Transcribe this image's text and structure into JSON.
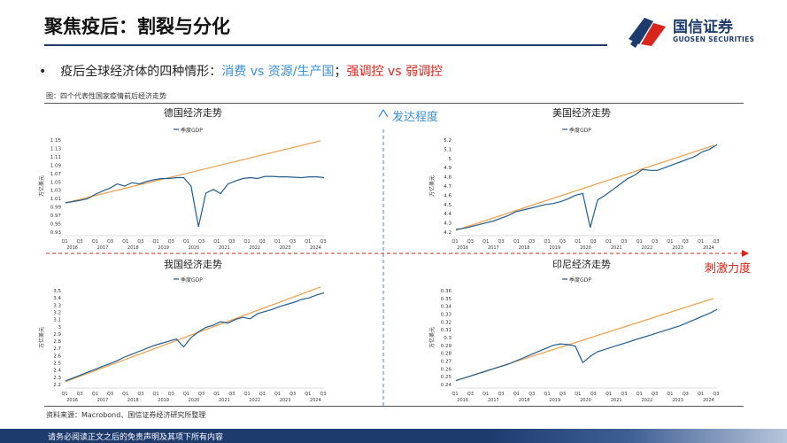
{
  "header": {
    "title": "聚焦疫后：割裂与分化",
    "logo_cn": "国信证券",
    "logo_en": "GUOSEN SECURITIES"
  },
  "bullet": {
    "marker": "•",
    "lead": "疫后全球经济体的四种情形：",
    "blue_part": "消费 vs 资源/生产国",
    "sep": "；",
    "red_part": "强调控 vs 弱调控"
  },
  "figure_caption": "图：四个代表性国家疫情前后经济走势",
  "axes_labels": {
    "vertical": "发达程度",
    "horizontal": "刺激力度"
  },
  "source_note": "资料来源：Macrobond、国信证券经济研究所整理",
  "footer": "请务必阅读正文之后的免责声明及其项下所有内容",
  "colors": {
    "gdp_line": "#1f5c8f",
    "trend_line": "#ee9b44",
    "divider": "#3a8fd6",
    "arrow_red": "#d9261c"
  },
  "chart_data": [
    {
      "id": "germany",
      "type": "line",
      "title": "德国经济走势",
      "legend": "季度GDP",
      "ylabel": "万亿美元",
      "ylim": [
        0.93,
        1.15
      ],
      "yticks": [
        "0.93",
        "0.95",
        "0.97",
        "0.99",
        "1.01",
        "1.03",
        "1.05",
        "1.07",
        "1.09",
        "1.11",
        "1.13",
        "1.15"
      ],
      "xticks": [
        "Q1",
        "Q3",
        "Q1",
        "Q3",
        "Q1",
        "Q3",
        "Q1",
        "Q3",
        "Q1",
        "Q3",
        "Q1",
        "Q3",
        "Q1",
        "Q3",
        "Q1",
        "Q3",
        "Q1",
        "Q3"
      ],
      "years": [
        "2016",
        "2017",
        "2018",
        "2019",
        "2020",
        "2021",
        "2022",
        "2023",
        "2024"
      ],
      "series": [
        {
          "values": [
            1.0,
            1.003,
            1.006,
            1.01,
            1.02,
            1.028,
            1.035,
            1.045,
            1.04,
            1.048,
            1.045,
            1.051,
            1.055,
            1.058,
            1.058,
            1.06,
            1.06,
            1.04,
            0.943,
            1.023,
            1.032,
            1.022,
            1.045,
            1.052,
            1.058,
            1.06,
            1.058,
            1.063,
            1.063,
            1.062,
            1.062,
            1.061,
            1.06,
            1.062,
            1.062,
            1.06
          ]
        },
        {
          "values_trend": [
            1.0,
            1.148
          ]
        }
      ]
    },
    {
      "id": "usa",
      "type": "line",
      "title": "美国经济走势",
      "legend": "季度GDP",
      "ylabel": "万亿美元",
      "ylim": [
        4.2,
        5.2
      ],
      "yticks": [
        "4.2",
        "4.3",
        "4.4",
        "4.5",
        "4.6",
        "4.7",
        "4.8",
        "4.9",
        "5",
        "5.1",
        "5.2"
      ],
      "xticks": [
        "Q1",
        "Q3",
        "Q1",
        "Q3",
        "Q1",
        "Q3",
        "Q1",
        "Q3",
        "Q1",
        "Q3",
        "Q1",
        "Q3",
        "Q1",
        "Q3",
        "Q1",
        "Q3",
        "Q1",
        "Q3"
      ],
      "years": [
        "2016",
        "2017",
        "2018",
        "2019",
        "2020",
        "2021",
        "2022",
        "2023",
        "2024"
      ],
      "series": [
        {
          "values": [
            4.23,
            4.24,
            4.26,
            4.28,
            4.3,
            4.32,
            4.35,
            4.38,
            4.42,
            4.44,
            4.46,
            4.48,
            4.5,
            4.51,
            4.53,
            4.56,
            4.6,
            4.62,
            4.25,
            4.55,
            4.6,
            4.66,
            4.72,
            4.78,
            4.82,
            4.88,
            4.87,
            4.87,
            4.9,
            4.93,
            4.96,
            4.99,
            5.02,
            5.07,
            5.1,
            5.15
          ]
        },
        {
          "values_trend": [
            4.22,
            5.14
          ]
        }
      ]
    },
    {
      "id": "china",
      "type": "line",
      "title": "我国经济走势",
      "legend": "季度GDP",
      "ylabel": "万亿美元",
      "ylim": [
        2.2,
        3.5
      ],
      "yticks": [
        "2.2",
        "2.3",
        "2.4",
        "2.5",
        "2.6",
        "2.7",
        "2.8",
        "2.9",
        "3",
        "3.1",
        "3.2",
        "3.3",
        "3.4",
        "3.5"
      ],
      "xticks": [
        "Q1",
        "Q3",
        "Q1",
        "Q3",
        "Q1",
        "Q3",
        "Q1",
        "Q3",
        "Q1",
        "Q3",
        "Q1",
        "Q3",
        "Q1",
        "Q3",
        "Q1",
        "Q3",
        "Q1",
        "Q3"
      ],
      "years": [
        "2016",
        "2017",
        "2018",
        "2019",
        "2020",
        "2021",
        "2022",
        "2023",
        "2024"
      ],
      "series": [
        {
          "values": [
            2.25,
            2.29,
            2.33,
            2.37,
            2.41,
            2.45,
            2.49,
            2.53,
            2.58,
            2.62,
            2.66,
            2.7,
            2.74,
            2.77,
            2.8,
            2.83,
            2.72,
            2.85,
            2.93,
            2.99,
            3.02,
            3.07,
            3.05,
            3.1,
            3.13,
            3.11,
            3.18,
            3.21,
            3.24,
            3.28,
            3.31,
            3.34,
            3.38,
            3.4,
            3.44,
            3.47
          ]
        },
        {
          "values_trend": [
            2.24,
            3.55
          ]
        }
      ]
    },
    {
      "id": "indonesia",
      "type": "line",
      "title": "印尼经济走势",
      "legend": "季度GDP",
      "ylabel": "万亿美元",
      "ylim": [
        0.24,
        0.36
      ],
      "yticks": [
        "0.24",
        "0.25",
        "0.26",
        "0.27",
        "0.28",
        "0.29",
        "0.3",
        "0.31",
        "0.32",
        "0.33",
        "0.34",
        "0.35",
        "0.36"
      ],
      "xticks": [
        "Q1",
        "Q3",
        "Q1",
        "Q3",
        "Q1",
        "Q3",
        "Q1",
        "Q3",
        "Q1",
        "Q3",
        "Q1",
        "Q3",
        "Q1",
        "Q3",
        "Q1",
        "Q3",
        "Q1",
        "Q3"
      ],
      "years": [
        "2016",
        "2017",
        "2018",
        "2019",
        "2020",
        "2021",
        "2022",
        "2023",
        "2024"
      ],
      "series": [
        {
          "values": [
            0.245,
            0.248,
            0.251,
            0.254,
            0.257,
            0.26,
            0.263,
            0.266,
            0.27,
            0.274,
            0.278,
            0.282,
            0.286,
            0.29,
            0.292,
            0.291,
            0.289,
            0.268,
            0.276,
            0.282,
            0.285,
            0.288,
            0.291,
            0.294,
            0.297,
            0.3,
            0.303,
            0.306,
            0.309,
            0.312,
            0.315,
            0.319,
            0.323,
            0.327,
            0.331,
            0.336
          ]
        },
        {
          "values_trend": [
            0.245,
            0.35
          ]
        }
      ]
    }
  ]
}
